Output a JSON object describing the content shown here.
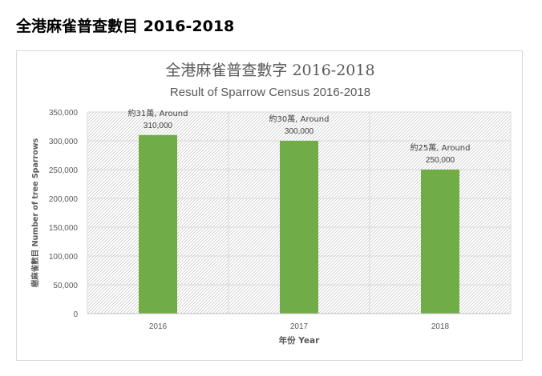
{
  "page": {
    "heading": "全港麻雀普查數目  2016-2018"
  },
  "chart_data": {
    "type": "bar",
    "title": "全港麻雀普查數字 2016-2018",
    "subtitle": "Result of Sparrow Census 2016-2018",
    "categories": [
      "2016",
      "2017",
      "2018"
    ],
    "values": [
      310000,
      300000,
      250000
    ],
    "data_labels": [
      [
        "約31萬, Around",
        "310,000"
      ],
      [
        "約30萬, Around",
        "300,000"
      ],
      [
        "約25萬, Around",
        "250,000"
      ]
    ],
    "xlabel": "年份 Year",
    "ylabel": "樹麻雀數目 Number of tree Sparrows",
    "ylim": [
      0,
      350000
    ],
    "ytick_labels": [
      "0",
      "50,000",
      "100,000",
      "150,000",
      "200,000",
      "250,000",
      "300,000",
      "350,000"
    ],
    "grid": true,
    "legend": "none",
    "bar_color": "#70ad47",
    "plot_pattern": "diagonal hatch"
  }
}
